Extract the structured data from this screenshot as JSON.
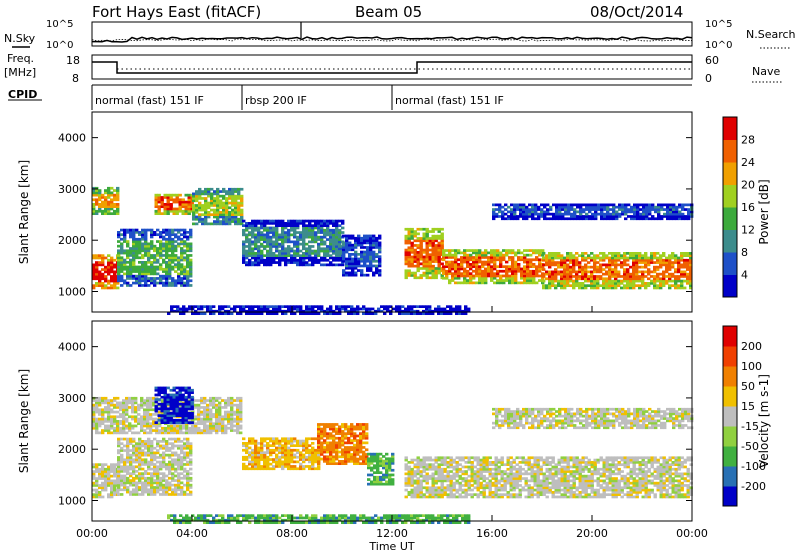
{
  "header": {
    "station": "Fort Hays East (fitACF)",
    "beam": "Beam 05",
    "date": "08/Oct/2014"
  },
  "noise_panel": {
    "left_label": "N.Sky",
    "right_label": "N.Search",
    "left_ticks": [
      "10^5",
      "10^0"
    ],
    "right_ticks": [
      "10^5",
      "10^0"
    ]
  },
  "freq_panel": {
    "left_label_1": "Freq.",
    "left_label_2": "[MHz]",
    "right_label": "Nave",
    "left_ticks": [
      "18",
      "8"
    ],
    "right_ticks": [
      "60",
      "0"
    ]
  },
  "cpid": {
    "label": "CPID",
    "segments": [
      {
        "name": "normal (fast) 151 IF",
        "start_h": 0,
        "end_h": 6.0
      },
      {
        "name": "rbsp 200 IF",
        "start_h": 6.0,
        "end_h": 12.0
      },
      {
        "name": "normal (fast) 151 IF",
        "start_h": 12.0,
        "end_h": 24
      }
    ]
  },
  "chart_data": [
    {
      "type": "heatmap",
      "panel": "power",
      "ylabel": "Slant Range [km]",
      "yticks": [
        "1000",
        "2000",
        "3000",
        "4000"
      ],
      "ylim": [
        600,
        4500
      ],
      "colorbar_label": "Power [dB]",
      "colorbar_ticks": [
        "28",
        "24",
        "20",
        "16",
        "12",
        "8",
        "4"
      ],
      "colors": [
        "#0000c8",
        "#1e50c8",
        "#3c8c8c",
        "#3caa3c",
        "#a0d020",
        "#f0a000",
        "#f06000",
        "#e00000"
      ],
      "bands": [
        {
          "t": [
            0,
            1.0
          ],
          "range": [
            1050,
            1700
          ],
          "level": 7
        },
        {
          "t": [
            0,
            1.0
          ],
          "range": [
            2500,
            3000
          ],
          "level": 5
        },
        {
          "t": [
            1.0,
            4.0
          ],
          "range": [
            1100,
            2200
          ],
          "level": 3
        },
        {
          "t": [
            2.5,
            4.0
          ],
          "range": [
            2500,
            2900
          ],
          "level": 6
        },
        {
          "t": [
            4.0,
            6.0
          ],
          "range": [
            2300,
            3000
          ],
          "level": 4
        },
        {
          "t": [
            6.0,
            10.0
          ],
          "range": [
            1500,
            2400
          ],
          "level": 2
        },
        {
          "t": [
            10.0,
            11.5
          ],
          "range": [
            1300,
            2100
          ],
          "level": 1
        },
        {
          "t": [
            12.5,
            14.0
          ],
          "range": [
            1250,
            2200
          ],
          "level": 6
        },
        {
          "t": [
            14.0,
            18.0
          ],
          "range": [
            1150,
            1800
          ],
          "level": 6
        },
        {
          "t": [
            18.0,
            24.0
          ],
          "range": [
            1050,
            1750
          ],
          "level": 6
        },
        {
          "t": [
            16.0,
            24.0
          ],
          "range": [
            2400,
            2700
          ],
          "level": 1
        },
        {
          "t": [
            3.0,
            15.0
          ],
          "range": [
            550,
            700
          ],
          "level": 0
        }
      ]
    },
    {
      "type": "heatmap",
      "panel": "velocity",
      "ylabel": "Slant Range [km]",
      "yticks": [
        "1000",
        "2000",
        "3000",
        "4000"
      ],
      "ylim": [
        600,
        4500
      ],
      "colorbar_label": "Velocity [m s-1]",
      "colorbar_ticks": [
        "200",
        "100",
        "50",
        "15",
        "-15",
        "-50",
        "-100",
        "-200"
      ],
      "colors": [
        "#0000c8",
        "#2870b4",
        "#40b040",
        "#90d040",
        "#bebebe",
        "#f0c000",
        "#f08000",
        "#f04000",
        "#e00000"
      ],
      "bands": [
        {
          "t": [
            0,
            1.0
          ],
          "range": [
            1050,
            1700
          ],
          "level": 4
        },
        {
          "t": [
            0,
            6.0
          ],
          "range": [
            2300,
            3000
          ],
          "level": 4
        },
        {
          "t": [
            2.5,
            4.0
          ],
          "range": [
            2500,
            3200
          ],
          "level": 0
        },
        {
          "t": [
            1.0,
            4.0
          ],
          "range": [
            1100,
            2200
          ],
          "level": 4
        },
        {
          "t": [
            6.0,
            9.0
          ],
          "range": [
            1600,
            2200
          ],
          "level": 5
        },
        {
          "t": [
            9.0,
            11.0
          ],
          "range": [
            1700,
            2500
          ],
          "level": 6
        },
        {
          "t": [
            11.0,
            12.0
          ],
          "range": [
            1300,
            1900
          ],
          "level": 2
        },
        {
          "t": [
            12.5,
            24.0
          ],
          "range": [
            1050,
            1850
          ],
          "level": 4
        },
        {
          "t": [
            16.0,
            24.0
          ],
          "range": [
            2400,
            2800
          ],
          "level": 4
        },
        {
          "t": [
            3.0,
            15.0
          ],
          "range": [
            550,
            700
          ],
          "level": 2
        }
      ]
    }
  ],
  "xaxis": {
    "label": "Time UT",
    "ticks": [
      "00:00",
      "04:00",
      "08:00",
      "12:00",
      "16:00",
      "20:00",
      "00:00"
    ]
  }
}
